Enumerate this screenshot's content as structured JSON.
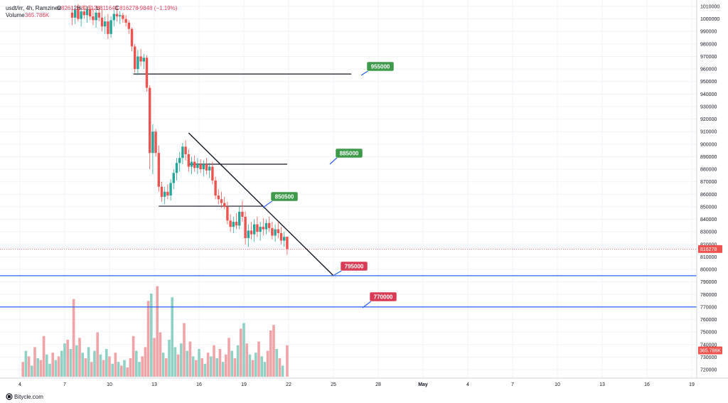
{
  "header": {
    "symbol": "usdt/irr, 4h, Ramzinex",
    "ohlc": [
      {
        "label": "O",
        "value": "826126"
      },
      {
        "label": "H",
        "value": "826126"
      },
      {
        "label": "L",
        "value": "811648"
      },
      {
        "label": "C",
        "value": "816278"
      }
    ],
    "change": "−9848 (−1.19%)",
    "volume_label": "Volume",
    "volume_value": "365.786K"
  },
  "watermark": "Bitycle.com",
  "colors": {
    "up": "#26a69a",
    "down": "#ef5350",
    "vol_up": "#8fd1c4",
    "vol_down": "#f0a4a8",
    "annotation_green": "#3d9a4b",
    "annotation_red": "#d93a55",
    "support_line": "#2962ff"
  },
  "chart_data": {
    "type": "candlestick",
    "x_tick_labels": [
      "4",
      "7",
      "10",
      "13",
      "16",
      "19",
      "22",
      "25",
      "28",
      "May",
      "4",
      "7",
      "10",
      "13",
      "16",
      "19"
    ],
    "y_tick_labels": [
      "1010000",
      "1000000",
      "990000",
      "980000",
      "970000",
      "960000",
      "950000",
      "940000",
      "930000",
      "920000",
      "910000",
      "900000",
      "890000",
      "880000",
      "870000",
      "860000",
      "850000",
      "840000",
      "830000",
      "820000",
      "810000",
      "800000",
      "790000",
      "780000",
      "770000",
      "760000",
      "750000",
      "740000",
      "730000",
      "720000"
    ],
    "y_range": [
      715000,
      1012000
    ],
    "last_price": "816278",
    "last_volume": "365.786K",
    "annotations": [
      {
        "label": "955000",
        "value": 955000,
        "kind": "resistance"
      },
      {
        "label": "885000",
        "value": 885000,
        "kind": "resistance"
      },
      {
        "label": "850500",
        "value": 850500,
        "kind": "resistance"
      },
      {
        "label": "795000",
        "value": 795000,
        "kind": "support"
      },
      {
        "label": "770000",
        "value": 770000,
        "kind": "support"
      }
    ],
    "trendline": {
      "from": [
        15.3,
        909000
      ],
      "to": [
        25.0,
        795000
      ]
    },
    "horizontal_segments": [
      {
        "from_day": 11.6,
        "to_day": 26.2,
        "value": 956000
      },
      {
        "from_day": 15.3,
        "to_day": 21.9,
        "value": 884000
      },
      {
        "from_day": 13.3,
        "to_day": 20.3,
        "value": 850500
      }
    ],
    "candles": [
      {
        "d": 7.5,
        "o": 1005000,
        "h": 1010000,
        "l": 995000,
        "c": 1001000
      },
      {
        "d": 7.7,
        "o": 1001000,
        "h": 1011000,
        "l": 996000,
        "c": 1008000
      },
      {
        "d": 7.9,
        "o": 1008000,
        "h": 1012000,
        "l": 998000,
        "c": 1000000
      },
      {
        "d": 8.1,
        "o": 1000000,
        "h": 1009000,
        "l": 994000,
        "c": 1006000
      },
      {
        "d": 8.3,
        "o": 1006000,
        "h": 1011000,
        "l": 1000000,
        "c": 1003000
      },
      {
        "d": 8.5,
        "o": 1003000,
        "h": 1010000,
        "l": 997000,
        "c": 1008000
      },
      {
        "d": 8.7,
        "o": 1008000,
        "h": 1011000,
        "l": 999000,
        "c": 1002000
      },
      {
        "d": 8.9,
        "o": 1002000,
        "h": 1009000,
        "l": 995000,
        "c": 999000
      },
      {
        "d": 9.1,
        "o": 999000,
        "h": 1007000,
        "l": 993000,
        "c": 1005000
      },
      {
        "d": 9.3,
        "o": 1005000,
        "h": 1010000,
        "l": 998000,
        "c": 1001000
      },
      {
        "d": 9.5,
        "o": 1001000,
        "h": 1008000,
        "l": 990000,
        "c": 994000
      },
      {
        "d": 9.7,
        "o": 994000,
        "h": 1002000,
        "l": 988000,
        "c": 998000
      },
      {
        "d": 9.9,
        "o": 998000,
        "h": 1004000,
        "l": 984000,
        "c": 988000
      },
      {
        "d": 10.1,
        "o": 988000,
        "h": 1002000,
        "l": 985000,
        "c": 999000
      },
      {
        "d": 10.3,
        "o": 999000,
        "h": 1007000,
        "l": 994000,
        "c": 1004000
      },
      {
        "d": 10.5,
        "o": 1004000,
        "h": 1008000,
        "l": 998000,
        "c": 1002000
      },
      {
        "d": 10.7,
        "o": 1002000,
        "h": 1006000,
        "l": 996000,
        "c": 1003000
      },
      {
        "d": 10.9,
        "o": 1003000,
        "h": 1005000,
        "l": 997000,
        "c": 1000000
      },
      {
        "d": 11.1,
        "o": 1000000,
        "h": 1003000,
        "l": 994000,
        "c": 997000
      },
      {
        "d": 11.3,
        "o": 997000,
        "h": 999000,
        "l": 988000,
        "c": 992000
      },
      {
        "d": 11.5,
        "o": 992000,
        "h": 993000,
        "l": 974000,
        "c": 978000
      },
      {
        "d": 11.7,
        "o": 978000,
        "h": 980000,
        "l": 957000,
        "c": 960000
      },
      {
        "d": 11.9,
        "o": 960000,
        "h": 975000,
        "l": 955000,
        "c": 970000
      },
      {
        "d": 12.1,
        "o": 970000,
        "h": 976000,
        "l": 962000,
        "c": 966000
      },
      {
        "d": 12.3,
        "o": 966000,
        "h": 972000,
        "l": 960000,
        "c": 969000
      },
      {
        "d": 12.5,
        "o": 969000,
        "h": 971000,
        "l": 942000,
        "c": 945000
      },
      {
        "d": 12.7,
        "o": 945000,
        "h": 947000,
        "l": 880000,
        "c": 893000
      },
      {
        "d": 12.9,
        "o": 893000,
        "h": 916000,
        "l": 876000,
        "c": 910000
      },
      {
        "d": 13.1,
        "o": 910000,
        "h": 912000,
        "l": 890000,
        "c": 893000
      },
      {
        "d": 13.3,
        "o": 893000,
        "h": 899000,
        "l": 862000,
        "c": 866000
      },
      {
        "d": 13.5,
        "o": 866000,
        "h": 870000,
        "l": 854000,
        "c": 858000
      },
      {
        "d": 13.7,
        "o": 858000,
        "h": 866000,
        "l": 852000,
        "c": 862000
      },
      {
        "d": 13.9,
        "o": 862000,
        "h": 868000,
        "l": 856000,
        "c": 859000
      },
      {
        "d": 14.1,
        "o": 859000,
        "h": 872000,
        "l": 855000,
        "c": 869000
      },
      {
        "d": 14.3,
        "o": 869000,
        "h": 880000,
        "l": 864000,
        "c": 877000
      },
      {
        "d": 14.5,
        "o": 877000,
        "h": 889000,
        "l": 871000,
        "c": 885000
      },
      {
        "d": 14.7,
        "o": 885000,
        "h": 894000,
        "l": 878000,
        "c": 889000
      },
      {
        "d": 14.9,
        "o": 889000,
        "h": 901000,
        "l": 884000,
        "c": 898000
      },
      {
        "d": 15.1,
        "o": 898000,
        "h": 903000,
        "l": 887000,
        "c": 892000
      },
      {
        "d": 15.3,
        "o": 892000,
        "h": 896000,
        "l": 878000,
        "c": 882000
      },
      {
        "d": 15.5,
        "o": 882000,
        "h": 890000,
        "l": 876000,
        "c": 886000
      },
      {
        "d": 15.7,
        "o": 886000,
        "h": 891000,
        "l": 878000,
        "c": 881000
      },
      {
        "d": 15.9,
        "o": 881000,
        "h": 889000,
        "l": 876000,
        "c": 884000
      },
      {
        "d": 16.1,
        "o": 884000,
        "h": 888000,
        "l": 877000,
        "c": 880000
      },
      {
        "d": 16.3,
        "o": 880000,
        "h": 887000,
        "l": 874000,
        "c": 884000
      },
      {
        "d": 16.5,
        "o": 884000,
        "h": 889000,
        "l": 876000,
        "c": 879000
      },
      {
        "d": 16.7,
        "o": 879000,
        "h": 885000,
        "l": 873000,
        "c": 882000
      },
      {
        "d": 16.9,
        "o": 882000,
        "h": 886000,
        "l": 868000,
        "c": 871000
      },
      {
        "d": 17.1,
        "o": 871000,
        "h": 874000,
        "l": 856000,
        "c": 859000
      },
      {
        "d": 17.3,
        "o": 859000,
        "h": 864000,
        "l": 852000,
        "c": 856000
      },
      {
        "d": 17.5,
        "o": 856000,
        "h": 862000,
        "l": 849000,
        "c": 853000
      },
      {
        "d": 17.7,
        "o": 853000,
        "h": 858000,
        "l": 848000,
        "c": 850000
      },
      {
        "d": 17.9,
        "o": 850000,
        "h": 854000,
        "l": 836000,
        "c": 839000
      },
      {
        "d": 18.1,
        "o": 839000,
        "h": 844000,
        "l": 830000,
        "c": 834000
      },
      {
        "d": 18.3,
        "o": 834000,
        "h": 842000,
        "l": 829000,
        "c": 838000
      },
      {
        "d": 18.5,
        "o": 838000,
        "h": 845000,
        "l": 832000,
        "c": 835000
      },
      {
        "d": 18.7,
        "o": 835000,
        "h": 850000,
        "l": 832000,
        "c": 846000
      },
      {
        "d": 18.9,
        "o": 846000,
        "h": 855000,
        "l": 838000,
        "c": 842000
      },
      {
        "d": 19.1,
        "o": 842000,
        "h": 846000,
        "l": 820000,
        "c": 825000
      },
      {
        "d": 19.3,
        "o": 825000,
        "h": 836000,
        "l": 818000,
        "c": 831000
      },
      {
        "d": 19.5,
        "o": 831000,
        "h": 838000,
        "l": 824000,
        "c": 828000
      },
      {
        "d": 19.7,
        "o": 828000,
        "h": 840000,
        "l": 822000,
        "c": 836000
      },
      {
        "d": 19.9,
        "o": 836000,
        "h": 842000,
        "l": 826000,
        "c": 830000
      },
      {
        "d": 20.1,
        "o": 830000,
        "h": 838000,
        "l": 823000,
        "c": 834000
      },
      {
        "d": 20.3,
        "o": 834000,
        "h": 841000,
        "l": 827000,
        "c": 832000
      },
      {
        "d": 20.5,
        "o": 832000,
        "h": 840000,
        "l": 828000,
        "c": 837000
      },
      {
        "d": 20.7,
        "o": 837000,
        "h": 842000,
        "l": 830000,
        "c": 833000
      },
      {
        "d": 20.9,
        "o": 833000,
        "h": 838000,
        "l": 824000,
        "c": 827000
      },
      {
        "d": 21.1,
        "o": 827000,
        "h": 836000,
        "l": 822000,
        "c": 832000
      },
      {
        "d": 21.3,
        "o": 832000,
        "h": 838000,
        "l": 825000,
        "c": 829000
      },
      {
        "d": 21.5,
        "o": 829000,
        "h": 834000,
        "l": 820000,
        "c": 823000
      },
      {
        "d": 21.7,
        "o": 823000,
        "h": 830000,
        "l": 818000,
        "c": 826000
      },
      {
        "d": 21.9,
        "o": 826126,
        "h": 826126,
        "l": 811648,
        "c": 816278
      }
    ],
    "volume": [
      {
        "d": 4.2,
        "v": 0.8,
        "dir": "down"
      },
      {
        "d": 4.4,
        "v": 1.4,
        "dir": "up"
      },
      {
        "d": 4.6,
        "v": 1.1,
        "dir": "down"
      },
      {
        "d": 4.8,
        "v": 0.6,
        "dir": "up"
      },
      {
        "d": 5.0,
        "v": 1.6,
        "dir": "down"
      },
      {
        "d": 5.2,
        "v": 1.0,
        "dir": "up"
      },
      {
        "d": 5.4,
        "v": 0.9,
        "dir": "down"
      },
      {
        "d": 5.6,
        "v": 2.2,
        "dir": "down"
      },
      {
        "d": 5.8,
        "v": 1.2,
        "dir": "up"
      },
      {
        "d": 6.0,
        "v": 0.7,
        "dir": "up"
      },
      {
        "d": 6.2,
        "v": 1.3,
        "dir": "down"
      },
      {
        "d": 6.4,
        "v": 0.9,
        "dir": "up"
      },
      {
        "d": 6.6,
        "v": 1.1,
        "dir": "down"
      },
      {
        "d": 6.8,
        "v": 1.4,
        "dir": "up"
      },
      {
        "d": 7.0,
        "v": 1.8,
        "dir": "up"
      },
      {
        "d": 7.2,
        "v": 2.0,
        "dir": "down"
      },
      {
        "d": 7.4,
        "v": 1.5,
        "dir": "up"
      },
      {
        "d": 7.6,
        "v": 4.2,
        "dir": "down"
      },
      {
        "d": 7.8,
        "v": 1.7,
        "dir": "up"
      },
      {
        "d": 8.0,
        "v": 2.1,
        "dir": "down"
      },
      {
        "d": 8.2,
        "v": 1.3,
        "dir": "up"
      },
      {
        "d": 8.4,
        "v": 1.0,
        "dir": "down"
      },
      {
        "d": 8.6,
        "v": 1.6,
        "dir": "up"
      },
      {
        "d": 8.8,
        "v": 0.8,
        "dir": "down"
      },
      {
        "d": 9.0,
        "v": 1.4,
        "dir": "up"
      },
      {
        "d": 9.2,
        "v": 2.4,
        "dir": "down"
      },
      {
        "d": 9.4,
        "v": 1.2,
        "dir": "up"
      },
      {
        "d": 9.6,
        "v": 0.9,
        "dir": "down"
      },
      {
        "d": 9.8,
        "v": 1.5,
        "dir": "up"
      },
      {
        "d": 10.0,
        "v": 1.1,
        "dir": "down"
      },
      {
        "d": 10.2,
        "v": 0.7,
        "dir": "up"
      },
      {
        "d": 10.4,
        "v": 1.3,
        "dir": "down"
      },
      {
        "d": 10.6,
        "v": 0.8,
        "dir": "up"
      },
      {
        "d": 10.8,
        "v": 0.6,
        "dir": "down"
      },
      {
        "d": 11.0,
        "v": 0.9,
        "dir": "up"
      },
      {
        "d": 11.2,
        "v": 0.5,
        "dir": "down"
      },
      {
        "d": 11.4,
        "v": 1.0,
        "dir": "down"
      },
      {
        "d": 11.6,
        "v": 2.2,
        "dir": "down"
      },
      {
        "d": 11.8,
        "v": 1.4,
        "dir": "up"
      },
      {
        "d": 12.0,
        "v": 0.8,
        "dir": "up"
      },
      {
        "d": 12.2,
        "v": 1.1,
        "dir": "down"
      },
      {
        "d": 12.4,
        "v": 1.6,
        "dir": "down"
      },
      {
        "d": 12.6,
        "v": 4.1,
        "dir": "down"
      },
      {
        "d": 12.8,
        "v": 4.5,
        "dir": "up"
      },
      {
        "d": 13.0,
        "v": 2.1,
        "dir": "down"
      },
      {
        "d": 13.2,
        "v": 4.9,
        "dir": "down"
      },
      {
        "d": 13.4,
        "v": 2.4,
        "dir": "down"
      },
      {
        "d": 13.6,
        "v": 1.3,
        "dir": "up"
      },
      {
        "d": 13.8,
        "v": 1.0,
        "dir": "down"
      },
      {
        "d": 14.0,
        "v": 2.0,
        "dir": "up"
      },
      {
        "d": 14.2,
        "v": 4.3,
        "dir": "up"
      },
      {
        "d": 14.4,
        "v": 1.6,
        "dir": "up"
      },
      {
        "d": 14.6,
        "v": 1.2,
        "dir": "down"
      },
      {
        "d": 14.8,
        "v": 1.8,
        "dir": "up"
      },
      {
        "d": 15.0,
        "v": 2.9,
        "dir": "down"
      },
      {
        "d": 15.2,
        "v": 1.4,
        "dir": "up"
      },
      {
        "d": 15.4,
        "v": 1.9,
        "dir": "down"
      },
      {
        "d": 15.6,
        "v": 1.1,
        "dir": "up"
      },
      {
        "d": 15.8,
        "v": 0.9,
        "dir": "down"
      },
      {
        "d": 16.0,
        "v": 1.5,
        "dir": "up"
      },
      {
        "d": 16.2,
        "v": 1.0,
        "dir": "down"
      },
      {
        "d": 16.4,
        "v": 0.7,
        "dir": "up"
      },
      {
        "d": 16.6,
        "v": 1.3,
        "dir": "down"
      },
      {
        "d": 16.8,
        "v": 1.1,
        "dir": "up"
      },
      {
        "d": 17.0,
        "v": 1.7,
        "dir": "down"
      },
      {
        "d": 17.2,
        "v": 1.0,
        "dir": "up"
      },
      {
        "d": 17.4,
        "v": 1.5,
        "dir": "down"
      },
      {
        "d": 17.6,
        "v": 0.8,
        "dir": "up"
      },
      {
        "d": 17.8,
        "v": 1.2,
        "dir": "down"
      },
      {
        "d": 18.0,
        "v": 2.1,
        "dir": "down"
      },
      {
        "d": 18.2,
        "v": 1.4,
        "dir": "up"
      },
      {
        "d": 18.4,
        "v": 1.0,
        "dir": "down"
      },
      {
        "d": 18.6,
        "v": 1.7,
        "dir": "up"
      },
      {
        "d": 18.8,
        "v": 2.6,
        "dir": "down"
      },
      {
        "d": 19.0,
        "v": 2.9,
        "dir": "up"
      },
      {
        "d": 19.2,
        "v": 1.8,
        "dir": "down"
      },
      {
        "d": 19.4,
        "v": 1.2,
        "dir": "up"
      },
      {
        "d": 19.6,
        "v": 0.9,
        "dir": "down"
      },
      {
        "d": 19.8,
        "v": 1.3,
        "dir": "up"
      },
      {
        "d": 20.0,
        "v": 1.9,
        "dir": "down"
      },
      {
        "d": 20.2,
        "v": 1.1,
        "dir": "up"
      },
      {
        "d": 20.4,
        "v": 0.8,
        "dir": "up"
      },
      {
        "d": 20.6,
        "v": 1.4,
        "dir": "down"
      },
      {
        "d": 20.8,
        "v": 2.5,
        "dir": "down"
      },
      {
        "d": 21.0,
        "v": 2.8,
        "dir": "down"
      },
      {
        "d": 21.2,
        "v": 1.5,
        "dir": "up"
      },
      {
        "d": 21.4,
        "v": 1.0,
        "dir": "down"
      },
      {
        "d": 21.6,
        "v": 0.6,
        "dir": "up"
      },
      {
        "d": 21.9,
        "v": 1.7,
        "dir": "down"
      }
    ]
  }
}
